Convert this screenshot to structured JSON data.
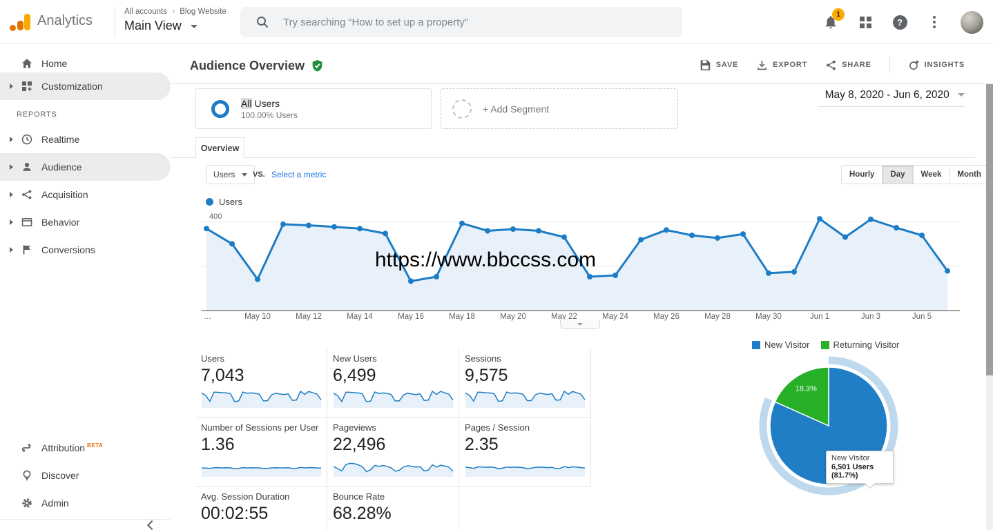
{
  "app": {
    "name": "Analytics"
  },
  "header": {
    "breadcrumb": {
      "account_path": "All accounts",
      "separator": "›",
      "property": "Blog Website"
    },
    "view_name": "Main View",
    "search_placeholder": "Try searching “How to set up a property”",
    "notification_count": "1"
  },
  "sidebar": {
    "items": [
      {
        "label": "Home"
      },
      {
        "label": "Customization"
      }
    ],
    "reports_label": "REPORTS",
    "report_items": [
      {
        "label": "Realtime"
      },
      {
        "label": "Audience"
      },
      {
        "label": "Acquisition"
      },
      {
        "label": "Behavior"
      },
      {
        "label": "Conversions"
      }
    ],
    "footer_items": [
      {
        "label": "Attribution",
        "badge": "BETA"
      },
      {
        "label": "Discover"
      },
      {
        "label": "Admin"
      }
    ]
  },
  "toolbar": {
    "title": "Audience Overview",
    "save_label": "SAVE",
    "export_label": "EXPORT",
    "share_label": "SHARE",
    "insights_label": "INSIGHTS"
  },
  "date_range": "May 8, 2020 - Jun 6, 2020",
  "segments": {
    "all_users_title_highlight": "All",
    "all_users_title_rest": " Users",
    "all_users_subtitle": "100.00% Users",
    "add_segment_label": "+ Add Segment"
  },
  "tabs": {
    "overview": "Overview"
  },
  "controls": {
    "metric_selector": "Users",
    "vs_label": "VS.",
    "select_metric_label": "Select a metric",
    "granularity": [
      "Hourly",
      "Day",
      "Week",
      "Month"
    ],
    "granularity_selected": "Day"
  },
  "watermark": "https://www.bbccss.com",
  "chart_data": [
    {
      "type": "line",
      "series_name": "Users",
      "legend": "Users",
      "x": [
        "May 8",
        "May 9",
        "May 10",
        "May 11",
        "May 12",
        "May 13",
        "May 14",
        "May 15",
        "May 16",
        "May 17",
        "May 18",
        "May 19",
        "May 20",
        "May 21",
        "May 22",
        "May 23",
        "May 24",
        "May 25",
        "May 26",
        "May 27",
        "May 28",
        "May 29",
        "May 30",
        "May 31",
        "Jun 1",
        "Jun 2",
        "Jun 3",
        "Jun 4",
        "Jun 5",
        "Jun 6"
      ],
      "values": [
        368,
        300,
        140,
        388,
        383,
        376,
        368,
        346,
        132,
        152,
        392,
        358,
        366,
        358,
        330,
        152,
        158,
        318,
        362,
        338,
        326,
        344,
        168,
        174,
        412,
        330,
        410,
        372,
        338,
        178
      ],
      "ylim": [
        0,
        450
      ],
      "yticks": [
        200,
        400
      ],
      "xticks_shown": [
        "…",
        "May 10",
        "May 12",
        "May 14",
        "May 16",
        "May 18",
        "May 20",
        "May 22",
        "May 24",
        "May 26",
        "May 28",
        "May 30",
        "Jun 1",
        "Jun 3",
        "Jun 5"
      ],
      "grid": true,
      "line_color": "#1c7cc5",
      "fill_color": "#e8f1f9"
    },
    {
      "type": "pie",
      "slices": [
        {
          "label": "New Visitor",
          "pct": 81.7,
          "users": "6,501",
          "color": "#1f7ec6"
        },
        {
          "label": "Returning Visitor",
          "pct": 18.3,
          "color": "#29b029"
        }
      ],
      "slice_label": "18.3%",
      "legend_position": "top",
      "halo_color": "#aecfe9",
      "tooltip": {
        "title": "New Visitor",
        "value": "6,501 Users (81.7%)"
      }
    }
  ],
  "metrics": [
    {
      "label": "Users",
      "value": "7,043",
      "spark": [
        0.89,
        0.72,
        0.34,
        0.94,
        0.93,
        0.91,
        0.89,
        0.84,
        0.32,
        0.37,
        0.95,
        0.87,
        0.89,
        0.87,
        0.8,
        0.37,
        0.38,
        0.77,
        0.88,
        0.82,
        0.79,
        0.83,
        0.41,
        0.42,
        1.0,
        0.8,
        0.99,
        0.9,
        0.82,
        0.43
      ]
    },
    {
      "label": "New Users",
      "value": "6,499",
      "spark": [
        0.88,
        0.71,
        0.33,
        0.94,
        0.93,
        0.91,
        0.89,
        0.83,
        0.31,
        0.36,
        0.95,
        0.86,
        0.89,
        0.86,
        0.79,
        0.36,
        0.38,
        0.76,
        0.88,
        0.82,
        0.78,
        0.83,
        0.4,
        0.42,
        1.0,
        0.79,
        0.99,
        0.9,
        0.81,
        0.42
      ]
    },
    {
      "label": "Sessions",
      "value": "9,575",
      "spark": [
        0.89,
        0.73,
        0.35,
        0.94,
        0.93,
        0.9,
        0.89,
        0.84,
        0.33,
        0.38,
        0.95,
        0.87,
        0.89,
        0.87,
        0.8,
        0.38,
        0.39,
        0.77,
        0.88,
        0.83,
        0.79,
        0.84,
        0.42,
        0.43,
        1.0,
        0.8,
        0.99,
        0.9,
        0.82,
        0.44
      ]
    },
    {
      "label": "Number of Sessions per User",
      "value": "1.36",
      "spark": [
        0.5,
        0.49,
        0.46,
        0.52,
        0.51,
        0.5,
        0.51,
        0.5,
        0.45,
        0.47,
        0.52,
        0.5,
        0.51,
        0.5,
        0.5,
        0.46,
        0.47,
        0.5,
        0.51,
        0.5,
        0.5,
        0.51,
        0.46,
        0.47,
        0.53,
        0.5,
        0.52,
        0.51,
        0.5,
        0.48
      ]
    },
    {
      "label": "Pageviews",
      "value": "22,496",
      "spark": [
        0.6,
        0.45,
        0.3,
        0.72,
        0.8,
        0.78,
        0.7,
        0.58,
        0.25,
        0.38,
        0.66,
        0.6,
        0.66,
        0.6,
        0.5,
        0.28,
        0.35,
        0.56,
        0.64,
        0.6,
        0.55,
        0.58,
        0.3,
        0.35,
        0.7,
        0.55,
        0.68,
        0.62,
        0.55,
        0.28
      ]
    },
    {
      "label": "Pages / Session",
      "value": "2.35",
      "spark": [
        0.55,
        0.52,
        0.47,
        0.57,
        0.56,
        0.54,
        0.55,
        0.53,
        0.44,
        0.48,
        0.56,
        0.53,
        0.55,
        0.53,
        0.52,
        0.45,
        0.48,
        0.53,
        0.55,
        0.53,
        0.52,
        0.54,
        0.45,
        0.47,
        0.58,
        0.52,
        0.57,
        0.55,
        0.52,
        0.48
      ]
    },
    {
      "label": "Avg. Session Duration",
      "value": "00:02:55",
      "spark": [
        0.45,
        0.55,
        0.33,
        0.5,
        0.62,
        0.46,
        0.56,
        0.42,
        0.3,
        0.52,
        0.66,
        0.5,
        0.46,
        0.57,
        0.4,
        0.34,
        0.52,
        0.46,
        0.62,
        0.5,
        0.46,
        0.56,
        0.34,
        0.42,
        0.64,
        0.48,
        0.56,
        0.5,
        0.44,
        0.36
      ]
    },
    {
      "label": "Bounce Rate",
      "value": "68.28%",
      "spark": [
        0.74,
        0.72,
        0.69,
        0.75,
        0.74,
        0.73,
        0.74,
        0.72,
        0.68,
        0.7,
        0.75,
        0.73,
        0.74,
        0.73,
        0.72,
        0.68,
        0.69,
        0.73,
        0.74,
        0.73,
        0.72,
        0.74,
        0.68,
        0.69,
        0.76,
        0.72,
        0.75,
        0.74,
        0.72,
        0.7
      ]
    }
  ]
}
